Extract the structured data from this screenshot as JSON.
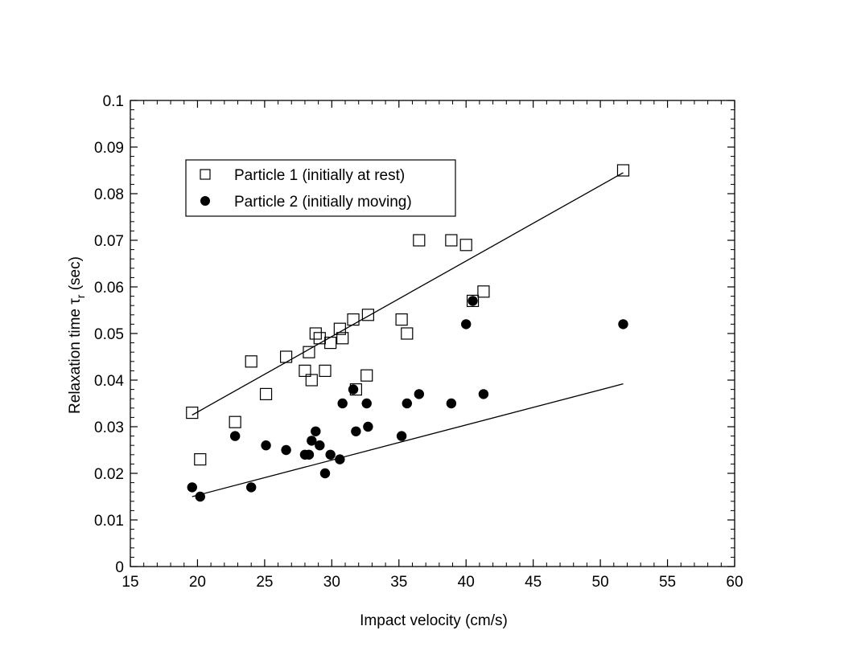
{
  "chart_data": {
    "type": "scatter",
    "title": "",
    "xlabel": "Impact velocity (cm/s)",
    "ylabel": "Relaxation time τr (sec)",
    "ylabel_parts": {
      "prefix": "Relaxation time ",
      "symbol": "τ",
      "subscript": "r",
      "suffix": " (sec)"
    },
    "xlim": [
      15,
      60
    ],
    "ylim": [
      0,
      0.1
    ],
    "x_ticks": [
      "15",
      "20",
      "25",
      "30",
      "35",
      "40",
      "45",
      "50",
      "55",
      "60"
    ],
    "y_ticks": [
      "0",
      "0.01",
      "0.02",
      "0.03",
      "0.04",
      "0.05",
      "0.06",
      "0.07",
      "0.08",
      "0.09",
      "0.1"
    ],
    "x_tick_values": [
      15,
      20,
      25,
      30,
      35,
      40,
      45,
      50,
      55,
      60
    ],
    "y_tick_values": [
      0,
      0.01,
      0.02,
      0.03,
      0.04,
      0.05,
      0.06,
      0.07,
      0.08,
      0.09,
      0.1
    ],
    "grid": false,
    "legend_position": "top-left",
    "series": [
      {
        "name": "Particle 1 (initially at rest)",
        "marker": "open-square",
        "x": [
          19.6,
          20.2,
          22.8,
          24.0,
          25.1,
          26.6,
          28.0,
          28.3,
          28.5,
          28.8,
          29.1,
          29.5,
          29.9,
          30.6,
          30.8,
          31.6,
          31.8,
          32.6,
          32.7,
          35.2,
          35.6,
          36.5,
          38.9,
          40.0,
          40.5,
          41.3,
          51.7
        ],
        "y": [
          0.033,
          0.023,
          0.031,
          0.044,
          0.037,
          0.045,
          0.042,
          0.046,
          0.04,
          0.05,
          0.049,
          0.042,
          0.048,
          0.051,
          0.049,
          0.053,
          0.038,
          0.041,
          0.054,
          0.053,
          0.05,
          0.07,
          0.07,
          0.069,
          0.057,
          0.059,
          0.085
        ],
        "fit_line": {
          "x": [
            19.6,
            51.7
          ],
          "y": [
            0.0325,
            0.0845
          ]
        }
      },
      {
        "name": "Particle 2 (initially moving)",
        "marker": "filled-circle",
        "x": [
          19.6,
          20.2,
          22.8,
          24.0,
          25.1,
          26.6,
          28.0,
          28.3,
          28.5,
          28.8,
          29.1,
          29.5,
          29.9,
          30.6,
          30.8,
          31.6,
          31.8,
          32.6,
          32.7,
          35.2,
          35.6,
          36.5,
          38.9,
          40.0,
          40.5,
          41.3,
          51.7
        ],
        "y": [
          0.017,
          0.015,
          0.028,
          0.017,
          0.026,
          0.025,
          0.024,
          0.024,
          0.027,
          0.029,
          0.026,
          0.02,
          0.024,
          0.023,
          0.035,
          0.038,
          0.029,
          0.035,
          0.03,
          0.028,
          0.035,
          0.037,
          0.035,
          0.052,
          0.057,
          0.037,
          0.052
        ],
        "fit_line": {
          "x": [
            19.6,
            51.7
          ],
          "y": [
            0.015,
            0.0392
          ]
        }
      }
    ]
  }
}
